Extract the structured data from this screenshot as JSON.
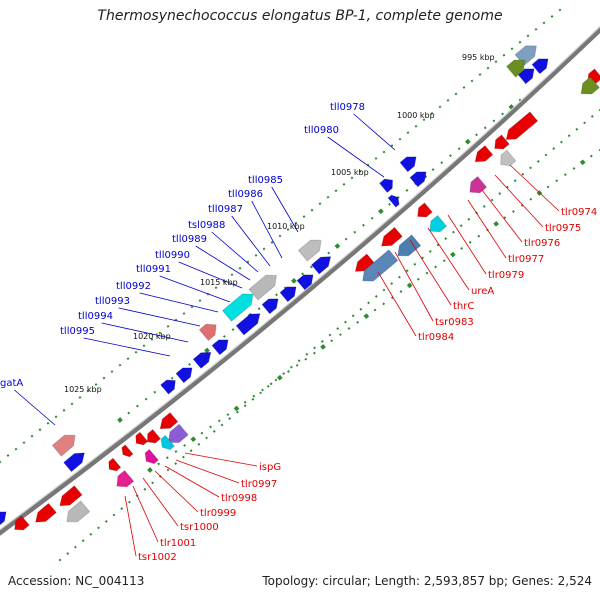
{
  "title": "Thermosynechococcus elongatus BP-1, complete genome",
  "footer": {
    "accession": "Accession: NC_004113",
    "summary": "Topology: circular; Length: 2,593,857 bp; Genes: 2,524"
  },
  "colors": {
    "backbone": "#777777",
    "tick": "#2e8b2e",
    "plus_label": "#0000cc",
    "minus_label": "#dd0000",
    "plus_gene": "#1010e0",
    "minus_gene": "#e80000"
  },
  "kbp_labels": [
    "995 kbp",
    "1000 kbp",
    "1005 kbp",
    "1010 kbp",
    "1015 kbp",
    "1020 kbp",
    "1025 kbp"
  ],
  "plus_labels": [
    "tll0978",
    "tll0980",
    "tll0985",
    "tll0986",
    "tll0987",
    "tsl0988",
    "tll0989",
    "tll0990",
    "tll0991",
    "tll0992",
    "tll0993",
    "tll0994",
    "tll0995",
    "gatA"
  ],
  "minus_labels": [
    "tlr0974",
    "tlr0975",
    "tlr0976",
    "tlr0977",
    "tlr0979",
    "ureA",
    "thrC",
    "tsr0983",
    "tlr0984",
    "ispG",
    "tlr0997",
    "tlr0998",
    "tlr0999",
    "tsr1000",
    "tlr1001",
    "tsr1002"
  ]
}
